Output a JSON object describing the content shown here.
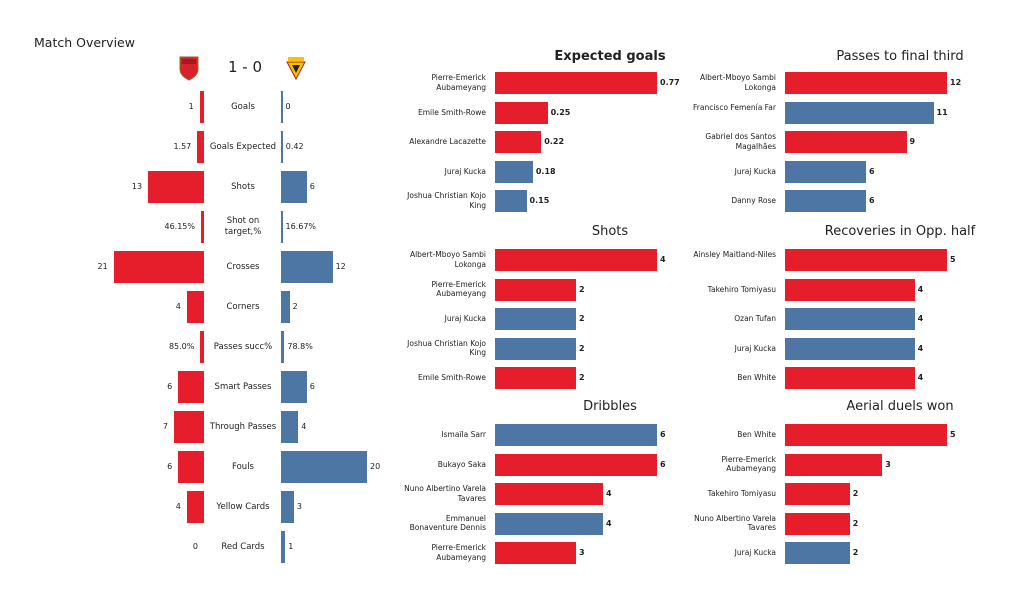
{
  "colors": {
    "home": "#e61e2b",
    "away": "#4d76a4"
  },
  "overview": {
    "title": "Match Overview",
    "score": "1 - 0",
    "home_crest": "arsenal-crest",
    "away_crest": "watford-crest",
    "rows": [
      {
        "label": "Goals",
        "home": "1",
        "away": "0",
        "hv": 1,
        "av": 0
      },
      {
        "label": "Goals Expected",
        "home": "1.57",
        "away": "0.42",
        "hv": 1.57,
        "av": 0.42
      },
      {
        "label": "Shots",
        "home": "13",
        "away": "6",
        "hv": 13,
        "av": 6
      },
      {
        "label": "Shot on target,%",
        "home": "46.15%",
        "away": "16.67%",
        "hv": 46.15,
        "av": 16.67,
        "pct": true
      },
      {
        "label": "Crosses",
        "home": "21",
        "away": "12",
        "hv": 21,
        "av": 12
      },
      {
        "label": "Corners",
        "home": "4",
        "away": "2",
        "hv": 4,
        "av": 2
      },
      {
        "label": "Passes succ%",
        "home": "85.0%",
        "away": "78.8%",
        "hv": 85.0,
        "av": 78.8,
        "pct": true
      },
      {
        "label": "Smart Passes",
        "home": "6",
        "away": "6",
        "hv": 6,
        "av": 6
      },
      {
        "label": "Through Passes",
        "home": "7",
        "away": "4",
        "hv": 7,
        "av": 4
      },
      {
        "label": "Fouls",
        "home": "6",
        "away": "20",
        "hv": 6,
        "av": 20
      },
      {
        "label": "Yellow Cards",
        "home": "4",
        "away": "3",
        "hv": 4,
        "av": 3
      },
      {
        "label": "Red Cards",
        "home": "0",
        "away": "1",
        "hv": 0,
        "av": 1
      }
    ]
  },
  "chart_data": [
    {
      "type": "bar",
      "orientation": "horizontal",
      "title": "Expected goals",
      "title_bold": true,
      "categories": [
        "Pierre-Emerick Aubameyang",
        "Emile Smith-Rowe",
        "Alexandre Lacazette",
        "Juraj Kucka",
        "Joshua Christian Kojo King"
      ],
      "values": [
        0.77,
        0.25,
        0.22,
        0.18,
        0.15
      ],
      "labels": [
        "0.77",
        "0.25",
        "0.22",
        "0.18",
        "0.15"
      ],
      "teams": [
        "home",
        "home",
        "home",
        "away",
        "away"
      ]
    },
    {
      "type": "bar",
      "orientation": "horizontal",
      "title": "Passes to final third",
      "categories": [
        "Albert-Mboyo Sambi Lokonga",
        "Francisco Femenía Far",
        "Gabriel dos Santos Magalhães",
        "Juraj Kucka",
        "Danny Rose"
      ],
      "values": [
        12,
        11,
        9,
        6,
        6
      ],
      "labels": [
        "12",
        "11",
        "9",
        "6",
        "6"
      ],
      "teams": [
        "home",
        "away",
        "home",
        "away",
        "away"
      ]
    },
    {
      "type": "bar",
      "orientation": "horizontal",
      "title": "Shots",
      "categories": [
        "Albert-Mboyo Sambi Lokonga",
        "Pierre-Emerick Aubameyang",
        "Juraj Kucka",
        "Joshua Christian Kojo King",
        "Emile Smith-Rowe"
      ],
      "values": [
        4,
        2,
        2,
        2,
        2
      ],
      "labels": [
        "4",
        "2",
        "2",
        "2",
        "2"
      ],
      "teams": [
        "home",
        "home",
        "away",
        "away",
        "home"
      ]
    },
    {
      "type": "bar",
      "orientation": "horizontal",
      "title": "Recoveries in Opp. half",
      "categories": [
        "Ainsley Maitland-Niles",
        "Takehiro Tomiyasu",
        "Ozan Tufan",
        "Juraj Kucka",
        "Ben White"
      ],
      "values": [
        5,
        4,
        4,
        4,
        4
      ],
      "labels": [
        "5",
        "4",
        "4",
        "4",
        "4"
      ],
      "teams": [
        "home",
        "home",
        "away",
        "away",
        "home"
      ]
    },
    {
      "type": "bar",
      "orientation": "horizontal",
      "title": "Dribbles",
      "categories": [
        "Ismaïla Sarr",
        "Bukayo Saka",
        "Nuno Albertino Varela Tavares",
        "Emmanuel Bonaventure Dennis",
        "Pierre-Emerick Aubameyang"
      ],
      "values": [
        6,
        6,
        4,
        4,
        3
      ],
      "labels": [
        "6",
        "6",
        "4",
        "4",
        "3"
      ],
      "teams": [
        "away",
        "home",
        "home",
        "away",
        "home"
      ]
    },
    {
      "type": "bar",
      "orientation": "horizontal",
      "title": "Aerial duels won",
      "categories": [
        "Ben White",
        "Pierre-Emerick Aubameyang",
        "Takehiro Tomiyasu",
        "Nuno Albertino Varela Tavares",
        "Juraj Kucka"
      ],
      "values": [
        5,
        3,
        2,
        2,
        2
      ],
      "labels": [
        "5",
        "3",
        "2",
        "2",
        "2"
      ],
      "teams": [
        "home",
        "home",
        "home",
        "home",
        "away"
      ]
    }
  ]
}
